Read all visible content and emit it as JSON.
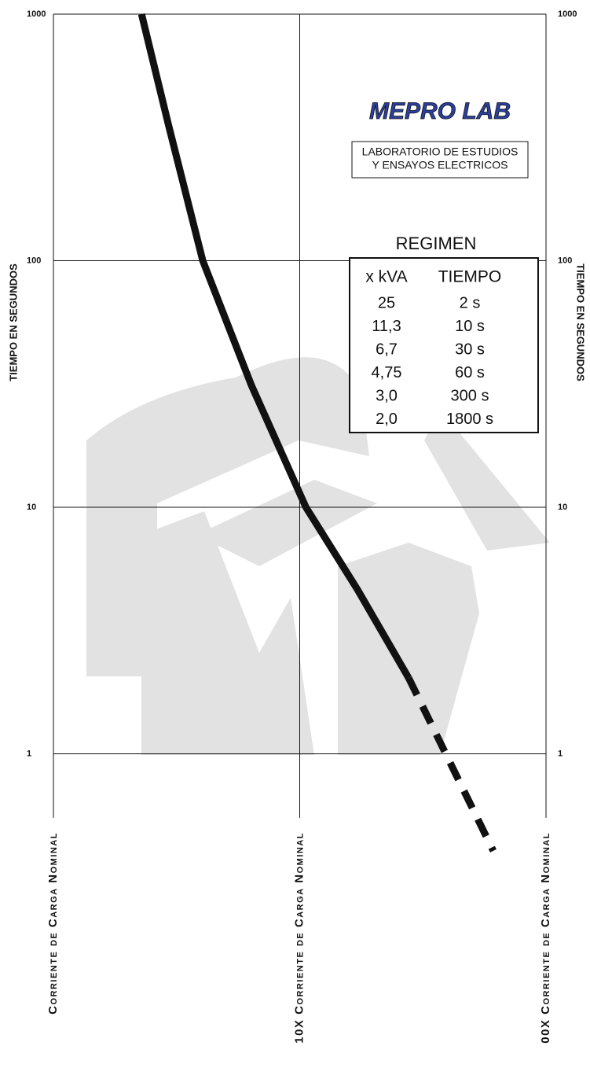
{
  "chart_data": {
    "type": "line",
    "y_label": "TIEMPO EN SEGUNDOS",
    "y2_label": "TIEMPO EN SEGUNDOS",
    "xlog": true,
    "ylog": true,
    "grid": true,
    "xlim": [
      1,
      100
    ],
    "ylim": [
      0.55,
      1000
    ],
    "xticks": [
      {
        "value": 1,
        "label": "Corriente de Carga Nominal"
      },
      {
        "value": 10,
        "label": "10X Corriente de Carga Nominal"
      },
      {
        "value": 100,
        "label": "00X Corriente de Carga Nominal"
      }
    ],
    "yticks": [
      1,
      10,
      100,
      1000
    ],
    "series": [
      {
        "color": "#111111",
        "style": "solid",
        "x": [
          2.28,
          2.94,
          4.04,
          6.37,
          10.6,
          17.2,
          27.7
        ],
        "values": [
          1000,
          352,
          100,
          31.2,
          10,
          4.62,
          2.03
        ]
      },
      {
        "color": "#111111",
        "style": "dashed",
        "x": [
          27.7,
          61.1
        ],
        "values": [
          2.03,
          0.404
        ]
      }
    ],
    "logo": "MEPRO LAB",
    "logo_subtitle": [
      "LABORATORIO DE ESTUDIOS",
      "Y ENSAYOS ELECTRICOS"
    ],
    "table": {
      "title": "REGIMEN",
      "columns": [
        "x kVA",
        "TIEMPO"
      ],
      "rows": [
        [
          "25",
          "2 s"
        ],
        [
          "11,3",
          "10 s"
        ],
        [
          "6,7",
          "30 s"
        ],
        [
          "4,75",
          "60 s"
        ],
        [
          "3,0",
          "300 s"
        ],
        [
          "2,0",
          "1800 s"
        ]
      ]
    }
  }
}
